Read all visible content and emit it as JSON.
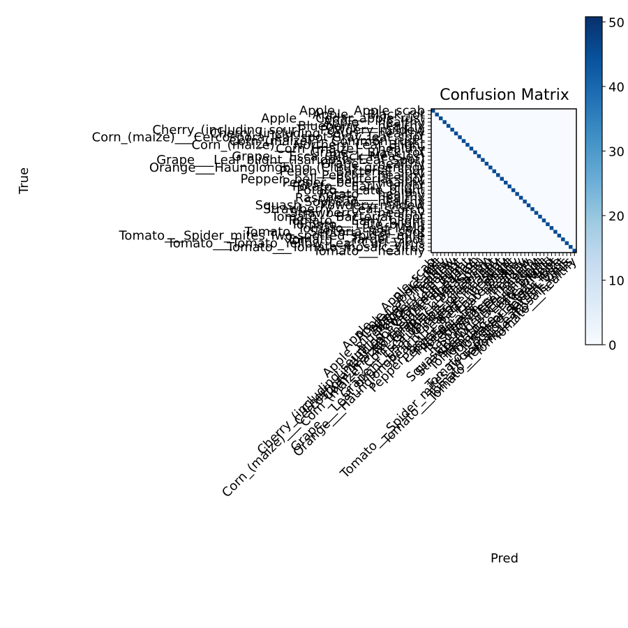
{
  "chart_data": {
    "type": "heatmap",
    "title": "Confusion Matrix",
    "xlabel": "Pred",
    "ylabel": "True",
    "colormap": "Blues",
    "color_low": "#f7fbff",
    "color_high": "#08306b",
    "value_range": [
      0,
      50
    ],
    "grid": false,
    "legend": "colorbar-right",
    "colorbar_ticks": [
      "0",
      "10",
      "20",
      "30",
      "40",
      "50"
    ],
    "classes": [
      "Apple___Apple_scab",
      "Apple___Black_rot",
      "Apple___Cedar_apple_rust",
      "Apple___healthy",
      "Blueberry___healthy",
      "Cherry_(including_sour)___Powdery_mildew",
      "Cherry_(including_sour)___healthy",
      "Corn_(maize)___Cercospora_leaf_spot Gray_leaf_spot",
      "Corn_(maize)___Common_rust_",
      "Corn_(maize)___Northern_Leaf_Blight",
      "Corn_(maize)___healthy",
      "Grape___Black_rot",
      "Grape___Esca_(Black_Measles)",
      "Grape___Leaf_blight_(Isariopsis_Leaf_Spot)",
      "Grape___healthy",
      "Orange___Haunglongbing_(Citrus_greening)",
      "Peach___Bacterial_spot",
      "Peach___healthy",
      "Pepper,_bell___Bacterial_spot",
      "Pepper,_bell___healthy",
      "Potato___Early_blight",
      "Potato___Late_blight",
      "Potato___healthy",
      "Raspberry___healthy",
      "Soybean___healthy",
      "Squash___Powdery_mildew",
      "Strawberry___Leaf_scorch",
      "Strawberry___healthy",
      "Tomato___Bacterial_spot",
      "Tomato___Early_blight",
      "Tomato___Late_blight",
      "Tomato___Leaf_Mold",
      "Tomato___Septoria_leaf_spot",
      "Tomato___Spider_mites Two-spotted_spider_mite",
      "Tomato___Target_Spot",
      "Tomato___Tomato_Yellow_Leaf_Curl_Virus",
      "Tomato___Tomato_mosaic_virus",
      "Tomato___healthy"
    ],
    "diagonal_values": [
      45,
      45,
      45,
      45,
      45,
      45,
      45,
      45,
      45,
      45,
      45,
      45,
      45,
      45,
      45,
      45,
      45,
      45,
      45,
      45,
      45,
      45,
      45,
      45,
      45,
      45,
      45,
      45,
      45,
      45,
      45,
      45,
      45,
      45,
      45,
      45,
      45,
      45
    ],
    "off_diagonal_value": 0
  }
}
